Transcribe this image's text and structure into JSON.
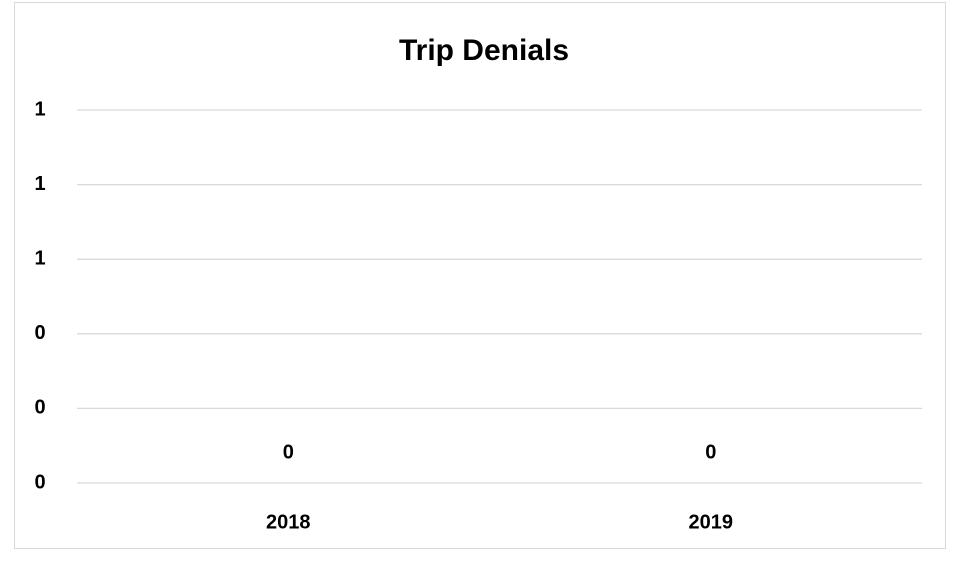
{
  "chart_data": {
    "type": "bar",
    "title": "Trip Denials",
    "categories": [
      "2018",
      "2019"
    ],
    "values": [
      0,
      0
    ],
    "color": "#4472c4",
    "ylim": [
      0,
      1
    ],
    "yticks": [
      0,
      {
        "value": 0.2,
        "label": "0"
      },
      {
        "value": 0.4,
        "label": "0"
      },
      {
        "value": 0.6,
        "label": "1"
      },
      {
        "value": 0.8,
        "label": "1"
      },
      1
    ],
    "grid": true
  }
}
